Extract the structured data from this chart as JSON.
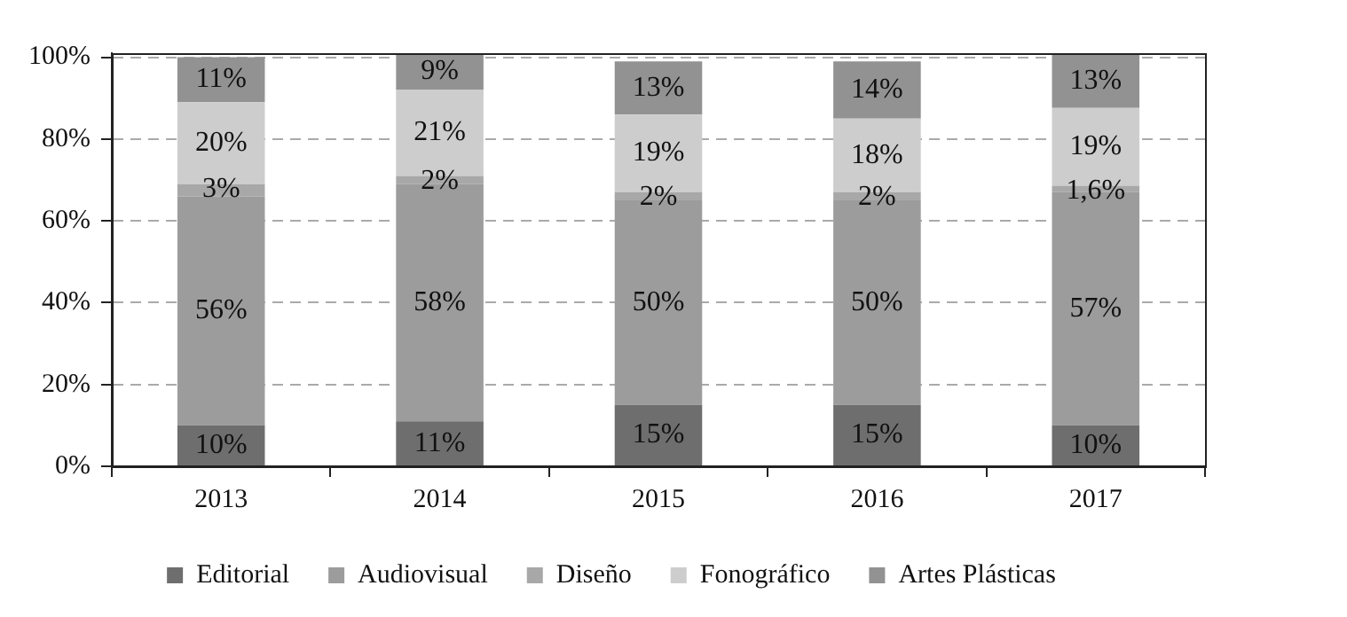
{
  "chart_data": {
    "type": "bar",
    "stacked": true,
    "categories": [
      "2013",
      "2014",
      "2015",
      "2016",
      "2017"
    ],
    "series": [
      {
        "name": "Editorial",
        "color": "#6e6e6e",
        "values": [
          10,
          11,
          15,
          15,
          10
        ],
        "value_labels": [
          "10%",
          "11%",
          "15%",
          "15%",
          "10%"
        ]
      },
      {
        "name": "Audiovisual",
        "color": "#9c9c9c",
        "values": [
          56,
          58,
          50,
          50,
          57
        ],
        "value_labels": [
          "56%",
          "58%",
          "50%",
          "50%",
          "57%"
        ]
      },
      {
        "name": "Diseño",
        "color": "#a8a8a8",
        "values": [
          3,
          2,
          2,
          2,
          1.6
        ],
        "value_labels": [
          "3%",
          "2%",
          "2%",
          "2%",
          "1,6%"
        ]
      },
      {
        "name": "Fonográfico",
        "color": "#cdcdcd",
        "values": [
          20,
          21,
          19,
          18,
          19
        ],
        "value_labels": [
          "20%",
          "21%",
          "19%",
          "18%",
          "19%"
        ]
      },
      {
        "name": "Artes Plásticas",
        "color": "#929292",
        "values": [
          11,
          9,
          13,
          14,
          13
        ],
        "value_labels": [
          "11%",
          "9%",
          "13%",
          "14%",
          "13%"
        ]
      }
    ],
    "ylim": [
      0,
      101
    ],
    "yticks": [
      {
        "value": 0,
        "label": "0%"
      },
      {
        "value": 20,
        "label": "20%"
      },
      {
        "value": 40,
        "label": "40%"
      },
      {
        "value": 60,
        "label": "60%"
      },
      {
        "value": 80,
        "label": "80%"
      },
      {
        "value": 100,
        "label": "100%"
      }
    ],
    "grid": "y",
    "legend": "bottom"
  }
}
